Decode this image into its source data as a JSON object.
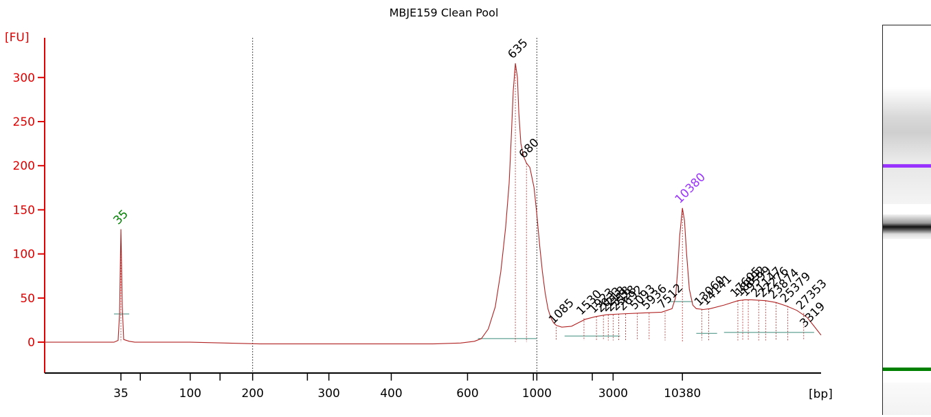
{
  "chart_data": {
    "type": "line",
    "title": "MBJE159 Clean Pool",
    "ylabel": "[FU]",
    "xlabel": "[bp]",
    "ylim": [
      -35,
      345
    ],
    "y_ticks": [
      0,
      50,
      100,
      150,
      200,
      250,
      300
    ],
    "x_tick_labels": [
      "35",
      "100",
      "200",
      "300",
      "400",
      "600",
      "1000",
      "3000",
      "10380"
    ],
    "x_tick_positions": [
      0.0,
      0.1,
      0.19,
      0.3,
      0.39,
      0.5,
      0.6,
      0.71,
      0.81
    ],
    "x_minor_positions": [
      0.028,
      0.143,
      0.269,
      0.595,
      0.68
    ],
    "x_range": [
      -0.11,
      1.01
    ],
    "gridlines_at": [
      0.19,
      0.6
    ],
    "peaks": [
      {
        "label": "35",
        "x": 0.0,
        "y": 128,
        "role": "lower_marker"
      },
      {
        "label": "635",
        "x": 0.569,
        "y": 316,
        "role": "sample"
      },
      {
        "label": "680",
        "x": 0.585,
        "y": 203,
        "role": "sample"
      },
      {
        "label": "10380",
        "x": 0.81,
        "y": 152,
        "role": "upper_marker"
      }
    ],
    "region_labels": [
      {
        "label": "1085",
        "x": 0.628,
        "y": 17
      },
      {
        "label": "1530",
        "x": 0.668,
        "y": 27
      },
      {
        "label": "1923",
        "x": 0.686,
        "y": 29
      },
      {
        "label": "2033",
        "x": 0.696,
        "y": 30
      },
      {
        "label": "2218",
        "x": 0.703,
        "y": 31
      },
      {
        "label": "2318",
        "x": 0.71,
        "y": 31
      },
      {
        "label": "2528",
        "x": 0.718,
        "y": 32
      },
      {
        "label": "2692",
        "x": 0.728,
        "y": 32
      },
      {
        "label": "5093",
        "x": 0.745,
        "y": 33
      },
      {
        "label": "5936",
        "x": 0.762,
        "y": 33
      },
      {
        "label": "7512",
        "x": 0.785,
        "y": 34
      },
      {
        "label": "13060",
        "x": 0.838,
        "y": 37
      },
      {
        "label": "14141",
        "x": 0.848,
        "y": 38
      },
      {
        "label": "17605",
        "x": 0.89,
        "y": 47
      },
      {
        "label": "18892",
        "x": 0.897,
        "y": 48
      },
      {
        "label": "19599",
        "x": 0.905,
        "y": 48
      },
      {
        "label": "21147",
        "x": 0.92,
        "y": 47
      },
      {
        "label": "22276",
        "x": 0.93,
        "y": 47
      },
      {
        "label": "23874",
        "x": 0.945,
        "y": 45
      },
      {
        "label": "25379",
        "x": 0.962,
        "y": 41
      },
      {
        "label": "27353",
        "x": 0.985,
        "y": 33
      },
      {
        "label": "3319",
        "x": 1.065,
        "y": 13
      }
    ],
    "trace_points": [
      [
        -0.11,
        0
      ],
      [
        -0.01,
        0
      ],
      [
        -0.004,
        2
      ],
      [
        -0.002,
        32
      ],
      [
        0.0,
        128
      ],
      [
        0.002,
        40
      ],
      [
        0.004,
        3
      ],
      [
        0.012,
        1
      ],
      [
        0.02,
        0
      ],
      [
        0.1,
        0
      ],
      [
        0.15,
        -1
      ],
      [
        0.2,
        -2
      ],
      [
        0.3,
        -2
      ],
      [
        0.4,
        -2
      ],
      [
        0.45,
        -2
      ],
      [
        0.49,
        -1
      ],
      [
        0.51,
        1
      ],
      [
        0.52,
        4
      ],
      [
        0.53,
        15
      ],
      [
        0.54,
        40
      ],
      [
        0.548,
        80
      ],
      [
        0.555,
        130
      ],
      [
        0.56,
        180
      ],
      [
        0.563,
        230
      ],
      [
        0.566,
        285
      ],
      [
        0.569,
        316
      ],
      [
        0.572,
        300
      ],
      [
        0.574,
        260
      ],
      [
        0.577,
        225
      ],
      [
        0.581,
        210
      ],
      [
        0.585,
        203
      ],
      [
        0.59,
        198
      ],
      [
        0.596,
        175
      ],
      [
        0.6,
        145
      ],
      [
        0.604,
        110
      ],
      [
        0.608,
        80
      ],
      [
        0.612,
        56
      ],
      [
        0.616,
        38
      ],
      [
        0.62,
        28
      ],
      [
        0.624,
        22
      ],
      [
        0.628,
        19
      ],
      [
        0.636,
        17
      ],
      [
        0.65,
        18
      ],
      [
        0.66,
        22
      ],
      [
        0.67,
        26
      ],
      [
        0.685,
        29
      ],
      [
        0.7,
        31
      ],
      [
        0.72,
        32
      ],
      [
        0.75,
        33
      ],
      [
        0.78,
        34
      ],
      [
        0.795,
        38
      ],
      [
        0.8,
        50
      ],
      [
        0.803,
        80
      ],
      [
        0.806,
        120
      ],
      [
        0.81,
        152
      ],
      [
        0.813,
        138
      ],
      [
        0.816,
        100
      ],
      [
        0.82,
        60
      ],
      [
        0.825,
        42
      ],
      [
        0.83,
        38
      ],
      [
        0.84,
        37
      ],
      [
        0.85,
        38
      ],
      [
        0.87,
        42
      ],
      [
        0.89,
        47
      ],
      [
        0.9,
        48
      ],
      [
        0.91,
        48
      ],
      [
        0.93,
        47
      ],
      [
        0.945,
        45
      ],
      [
        0.96,
        41
      ],
      [
        0.975,
        36
      ],
      [
        0.99,
        28
      ],
      [
        1.0,
        18
      ],
      [
        1.01,
        8
      ]
    ],
    "colors": {
      "axis": "#e00000",
      "trace": "#b02020",
      "lower_marker": "#008000",
      "upper_marker": "#9933ff",
      "label": "#000000",
      "grid": "#444444"
    }
  },
  "gel": {
    "upper_marker_color": "#9933ff",
    "lower_marker_color": "#008000",
    "upper_marker_pos": 0.355,
    "lower_marker_pos": 0.877,
    "sample_band_pos": 0.528
  }
}
